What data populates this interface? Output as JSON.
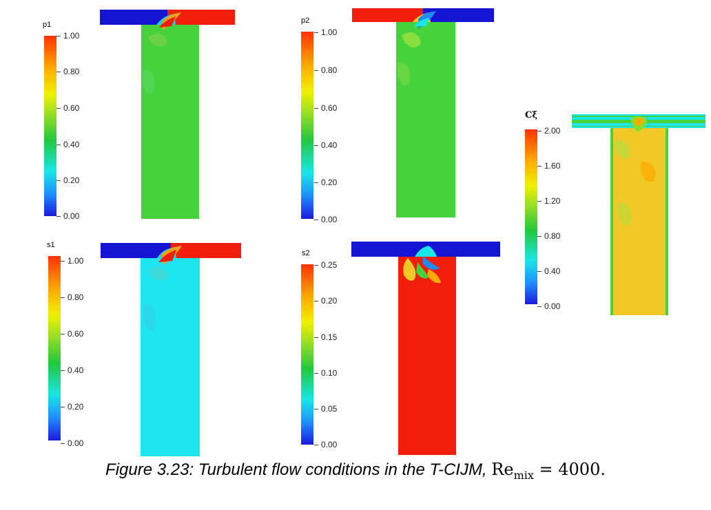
{
  "panels": {
    "p1": {
      "title": "p1",
      "ticks": [
        "1.00",
        "0.80",
        "0.60",
        "0.40",
        "0.20",
        "0.00"
      ]
    },
    "p2": {
      "title": "p2",
      "ticks": [
        "1.00",
        "0.80",
        "0.60",
        "0.40",
        "0.20",
        "0.00"
      ]
    },
    "s1": {
      "title": "s1",
      "ticks": [
        "1.00",
        "0.80",
        "0.60",
        "0.40",
        "0.20",
        "0.00"
      ]
    },
    "s2": {
      "title": "s2",
      "ticks": [
        "0.25",
        "0.20",
        "0.15",
        "0.10",
        "0.05",
        "0.00"
      ]
    },
    "cxi": {
      "title": "Cξ",
      "ticks": [
        "2.00",
        "1.60",
        "1.20",
        "0.80",
        "0.40",
        "0.00"
      ]
    }
  },
  "colors": {
    "blue": "#1414d2",
    "red": "#f01e0a",
    "green": "#46d23c",
    "cyan": "#1ee6f0",
    "yellow_orange": "#f0c828"
  },
  "caption": {
    "text": "Figure 3.23: Turbulent flow conditions in the T-CIJM, ",
    "re": "Re",
    "sub": "mix",
    "eq": " = 4000."
  }
}
